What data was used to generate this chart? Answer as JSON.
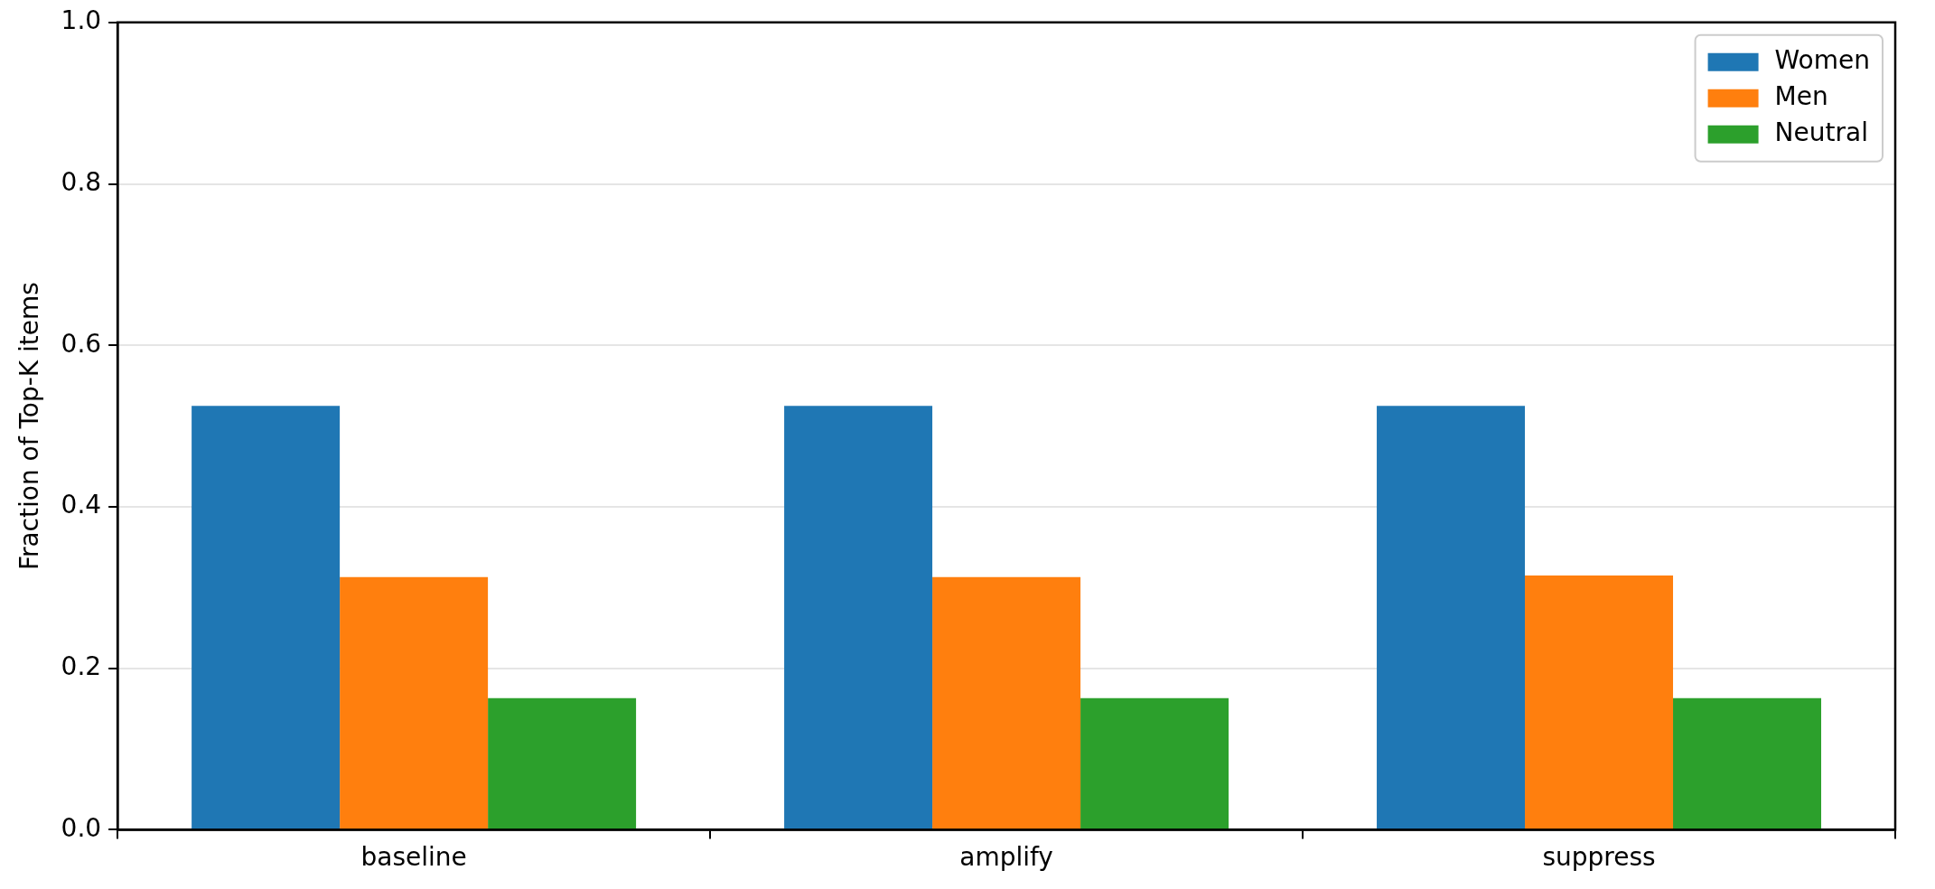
{
  "chart_data": {
    "type": "bar",
    "ylabel": "Fraction of Top-K items",
    "categories": [
      "baseline",
      "amplify",
      "suppress"
    ],
    "series": [
      {
        "name": "Women",
        "color": "#1f77b4",
        "values": [
          0.525,
          0.525,
          0.525
        ]
      },
      {
        "name": "Men",
        "color": "#ff7f0e",
        "values": [
          0.313,
          0.313,
          0.315
        ]
      },
      {
        "name": "Neutral",
        "color": "#2ca02c",
        "values": [
          0.163,
          0.163,
          0.163
        ]
      }
    ],
    "ylim": [
      0,
      1
    ],
    "yticks": [
      {
        "value": 0,
        "label": "0.0"
      },
      {
        "value": 0.2,
        "label": "0.2"
      },
      {
        "value": 0.4,
        "label": "0.4"
      },
      {
        "value": 0.6,
        "label": "0.6"
      },
      {
        "value": 0.8,
        "label": "0.8"
      },
      {
        "value": 1,
        "label": "1.0"
      }
    ],
    "grid": "y",
    "legend": "top right"
  }
}
